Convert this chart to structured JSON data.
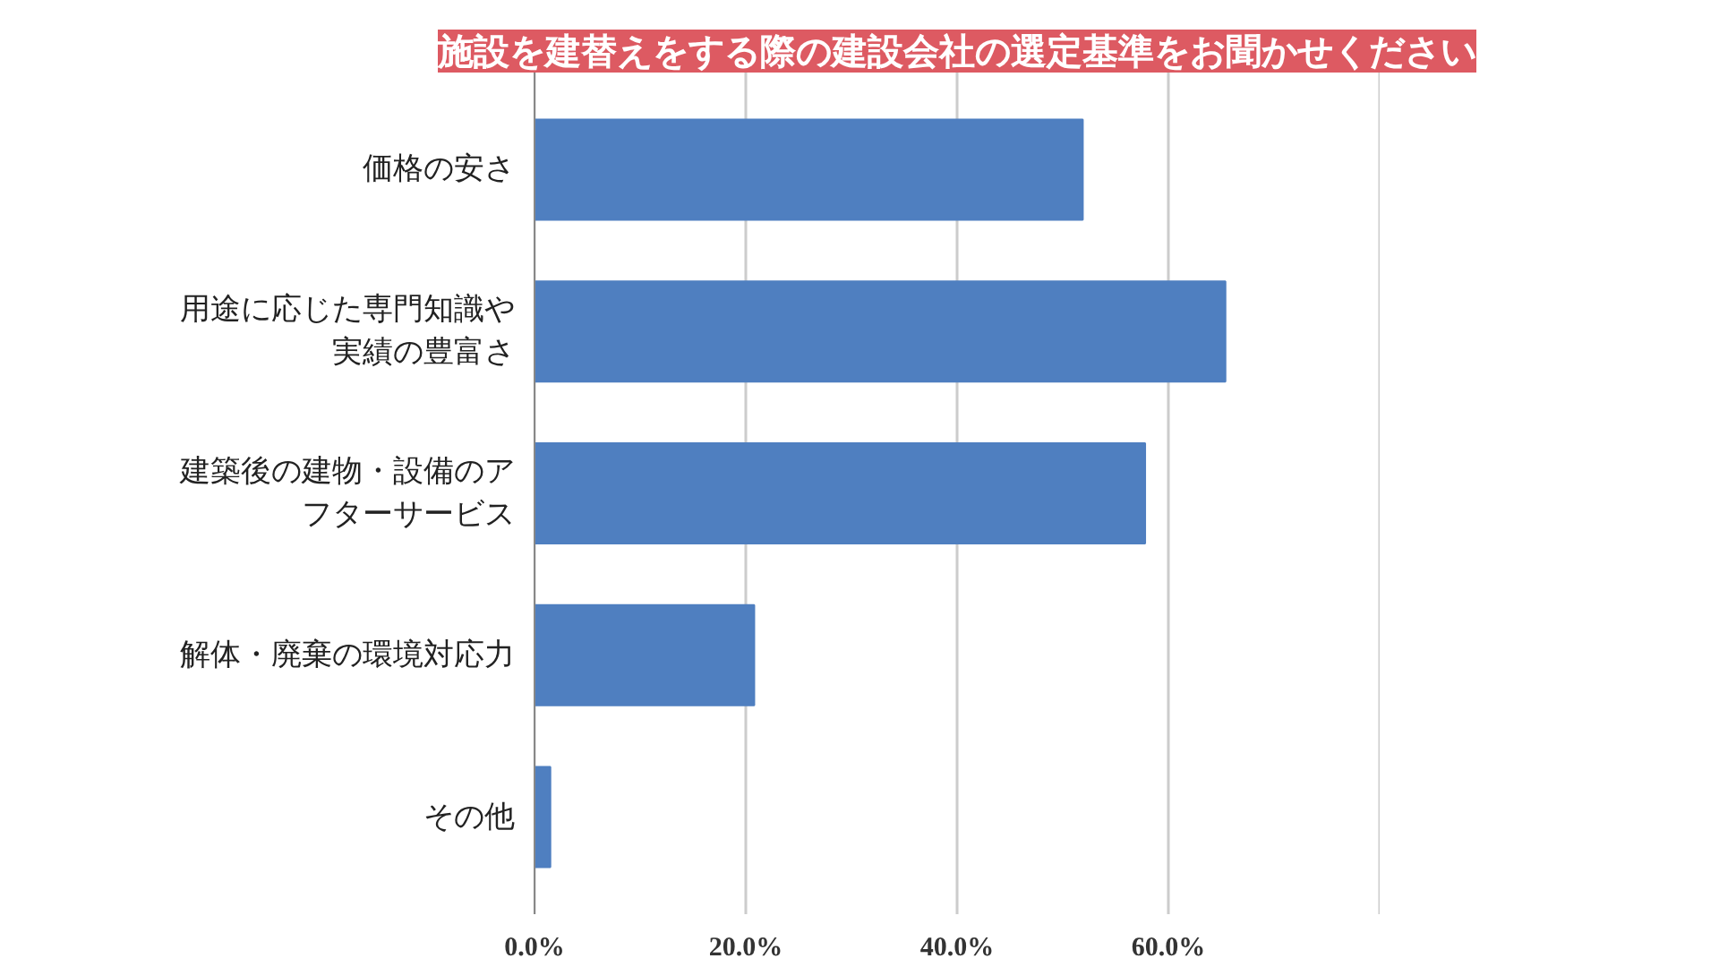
{
  "chart_data": {
    "type": "bar",
    "orientation": "horizontal",
    "title": "施設を建替えをする際の建設会社の選定基準をお聞かせください",
    "categories": [
      "価格の安さ",
      "用途に応じた専門知識や実績の豊富さ",
      "建築後の建物・設備のアフターサービス",
      "解体・廃棄の環境対応力",
      "その他"
    ],
    "values": [
      51.9,
      65.4,
      57.8,
      20.8,
      1.5
    ],
    "color": "#4f7fc0",
    "xlim": [
      0,
      80
    ],
    "xticks": [
      {
        "value": 0,
        "label": "0.0%"
      },
      {
        "value": 20,
        "label": "20.0%"
      },
      {
        "value": 40,
        "label": "40.0%"
      },
      {
        "value": 60,
        "label": "60.0%"
      },
      {
        "value": 80,
        "label": null
      }
    ],
    "grid": "x"
  }
}
